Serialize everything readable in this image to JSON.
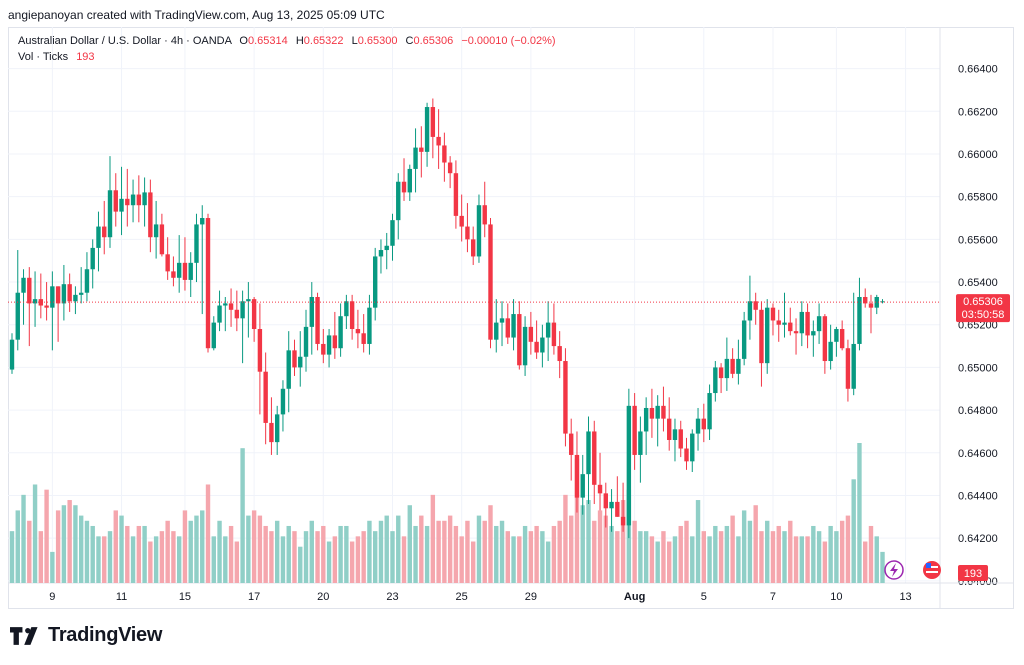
{
  "header": {
    "credit": "angiepanoyan created with TradingView.com, Aug 13, 2025 05:09 UTC"
  },
  "legend": {
    "symbol": "Australian Dollar / U.S. Dollar · 4h · OANDA",
    "open_label": "O",
    "open": "0.65314",
    "high_label": "H",
    "high": "0.65322",
    "low_label": "L",
    "low": "0.65300",
    "close_label": "C",
    "close": "0.65306",
    "change": "−0.00010 (−0.02%)",
    "vol_label": "Vol · Ticks",
    "vol": "193"
  },
  "footer": {
    "brand": "TradingView"
  },
  "colors": {
    "up": "#089981",
    "down": "#f23645",
    "vol_up": "#90cfc7",
    "vol_down": "#f5a6ad"
  },
  "chart_data": {
    "type": "candlestick",
    "title": "Australian Dollar / U.S. Dollar · 4h · OANDA",
    "y_ticks": [
      "0.64000",
      "0.64200",
      "0.64400",
      "0.64600",
      "0.64800",
      "0.65000",
      "0.65200",
      "0.65400",
      "0.65600",
      "0.65800",
      "0.66000",
      "0.66200",
      "0.66400"
    ],
    "ylim": [
      0.6399,
      0.6652
    ],
    "x_ticks": [
      {
        "label": "9",
        "i": 7
      },
      {
        "label": "11",
        "i": 19
      },
      {
        "label": "15",
        "i": 30
      },
      {
        "label": "17",
        "i": 42
      },
      {
        "label": "20",
        "i": 54
      },
      {
        "label": "23",
        "i": 66
      },
      {
        "label": "25",
        "i": 78
      },
      {
        "label": "29",
        "i": 90
      },
      {
        "label": "Aug",
        "i": 108
      },
      {
        "label": "5",
        "i": 120
      },
      {
        "label": "7",
        "i": 132
      },
      {
        "label": "10",
        "i": 143
      },
      {
        "label": "13",
        "i": 155
      }
    ],
    "last_price": "0.65306",
    "countdown": "03:50:58",
    "last_volume": "193",
    "candles": [
      [
        0.6499,
        0.6516,
        0.6497,
        0.6513,
        10
      ],
      [
        0.6513,
        0.6555,
        0.6508,
        0.6535,
        14
      ],
      [
        0.6535,
        0.6546,
        0.652,
        0.6542,
        17
      ],
      [
        0.6542,
        0.6547,
        0.651,
        0.653,
        12
      ],
      [
        0.653,
        0.6545,
        0.6519,
        0.6532,
        19
      ],
      [
        0.6532,
        0.6544,
        0.6523,
        0.6529,
        10
      ],
      [
        0.6529,
        0.654,
        0.6522,
        0.6528,
        18
      ],
      [
        0.6528,
        0.6545,
        0.6508,
        0.6538,
        6
      ],
      [
        0.6538,
        0.6538,
        0.6512,
        0.653,
        14
      ],
      [
        0.653,
        0.6548,
        0.6522,
        0.6539,
        15
      ],
      [
        0.6539,
        0.6544,
        0.6526,
        0.6531,
        16
      ],
      [
        0.6531,
        0.6538,
        0.6525,
        0.6534,
        15
      ],
      [
        0.6534,
        0.6547,
        0.653,
        0.6535,
        13
      ],
      [
        0.6535,
        0.6554,
        0.6531,
        0.6546,
        12
      ],
      [
        0.6546,
        0.656,
        0.6537,
        0.6556,
        11
      ],
      [
        0.6556,
        0.6573,
        0.6545,
        0.6566,
        9
      ],
      [
        0.6566,
        0.6578,
        0.6553,
        0.6561,
        9
      ],
      [
        0.6561,
        0.6599,
        0.6556,
        0.6583,
        10
      ],
      [
        0.6583,
        0.6591,
        0.6566,
        0.6573,
        14
      ],
      [
        0.6573,
        0.6594,
        0.6562,
        0.6579,
        13
      ],
      [
        0.6579,
        0.6593,
        0.6566,
        0.6576,
        11
      ],
      [
        0.6576,
        0.6588,
        0.6568,
        0.6581,
        9
      ],
      [
        0.6581,
        0.659,
        0.6568,
        0.6576,
        11
      ],
      [
        0.6576,
        0.6589,
        0.6566,
        0.6582,
        11
      ],
      [
        0.6582,
        0.6588,
        0.6554,
        0.6561,
        8
      ],
      [
        0.6561,
        0.6578,
        0.6551,
        0.6567,
        9
      ],
      [
        0.6567,
        0.6572,
        0.6552,
        0.6553,
        10
      ],
      [
        0.6553,
        0.6561,
        0.6541,
        0.6545,
        12
      ],
      [
        0.6545,
        0.6552,
        0.6538,
        0.6542,
        10
      ],
      [
        0.6542,
        0.6562,
        0.6535,
        0.6549,
        9
      ],
      [
        0.6549,
        0.6561,
        0.6536,
        0.6541,
        14
      ],
      [
        0.6541,
        0.6554,
        0.6533,
        0.6549,
        12
      ],
      [
        0.6549,
        0.6572,
        0.654,
        0.6567,
        13
      ],
      [
        0.6567,
        0.6576,
        0.6525,
        0.657,
        14
      ],
      [
        0.657,
        0.6572,
        0.6507,
        0.6509,
        19
      ],
      [
        0.6509,
        0.6524,
        0.6508,
        0.6521,
        9
      ],
      [
        0.6521,
        0.6536,
        0.6517,
        0.6529,
        12
      ],
      [
        0.6529,
        0.6533,
        0.6517,
        0.653,
        9
      ],
      [
        0.653,
        0.6537,
        0.6519,
        0.6527,
        11
      ],
      [
        0.6527,
        0.6536,
        0.6517,
        0.6523,
        8
      ],
      [
        0.6523,
        0.6536,
        0.6502,
        0.6531,
        26
      ],
      [
        0.6531,
        0.654,
        0.6514,
        0.6532,
        13
      ],
      [
        0.6532,
        0.6533,
        0.6512,
        0.6518,
        14
      ],
      [
        0.6518,
        0.653,
        0.6478,
        0.6498,
        13
      ],
      [
        0.6498,
        0.6507,
        0.6464,
        0.6474,
        11
      ],
      [
        0.6474,
        0.6486,
        0.6459,
        0.6465,
        10
      ],
      [
        0.6465,
        0.6482,
        0.6459,
        0.6478,
        12
      ],
      [
        0.6478,
        0.6494,
        0.647,
        0.649,
        9
      ],
      [
        0.649,
        0.6517,
        0.6479,
        0.6508,
        11
      ],
      [
        0.6508,
        0.6513,
        0.6496,
        0.65,
        10
      ],
      [
        0.65,
        0.6517,
        0.6491,
        0.6505,
        7
      ],
      [
        0.6505,
        0.6527,
        0.6498,
        0.6519,
        10
      ],
      [
        0.6519,
        0.654,
        0.6506,
        0.6533,
        12
      ],
      [
        0.6533,
        0.6535,
        0.6508,
        0.6511,
        10
      ],
      [
        0.6511,
        0.6518,
        0.6502,
        0.6506,
        11
      ],
      [
        0.6506,
        0.6518,
        0.65,
        0.6515,
        8
      ],
      [
        0.6515,
        0.6526,
        0.6504,
        0.6509,
        9
      ],
      [
        0.6509,
        0.653,
        0.6505,
        0.6524,
        11
      ],
      [
        0.6524,
        0.6534,
        0.6518,
        0.6531,
        11
      ],
      [
        0.6531,
        0.6534,
        0.6513,
        0.6518,
        8
      ],
      [
        0.6518,
        0.6527,
        0.6509,
        0.6516,
        9
      ],
      [
        0.6516,
        0.6525,
        0.6507,
        0.6511,
        10
      ],
      [
        0.6511,
        0.6534,
        0.6506,
        0.6528,
        12
      ],
      [
        0.6528,
        0.6556,
        0.6522,
        0.6552,
        10
      ],
      [
        0.6552,
        0.656,
        0.6544,
        0.6555,
        12
      ],
      [
        0.6555,
        0.6563,
        0.6546,
        0.6557,
        13
      ],
      [
        0.6557,
        0.6572,
        0.655,
        0.6569,
        10
      ],
      [
        0.6569,
        0.6591,
        0.656,
        0.6587,
        13
      ],
      [
        0.6587,
        0.6598,
        0.6578,
        0.6582,
        9
      ],
      [
        0.6582,
        0.6595,
        0.6578,
        0.6593,
        15
      ],
      [
        0.6593,
        0.6612,
        0.6582,
        0.6603,
        11
      ],
      [
        0.6603,
        0.6613,
        0.6589,
        0.6601,
        13
      ],
      [
        0.6601,
        0.6624,
        0.6594,
        0.6622,
        11
      ],
      [
        0.6622,
        0.6626,
        0.6598,
        0.6608,
        17
      ],
      [
        0.6608,
        0.6621,
        0.6593,
        0.6604,
        12
      ],
      [
        0.6604,
        0.661,
        0.6587,
        0.6596,
        12
      ],
      [
        0.6596,
        0.6599,
        0.6584,
        0.6591,
        13
      ],
      [
        0.6591,
        0.6597,
        0.6565,
        0.6571,
        11
      ],
      [
        0.6571,
        0.6581,
        0.6559,
        0.6566,
        9
      ],
      [
        0.6566,
        0.6577,
        0.6554,
        0.656,
        12
      ],
      [
        0.656,
        0.6566,
        0.6548,
        0.6552,
        8
      ],
      [
        0.6552,
        0.6581,
        0.6549,
        0.6576,
        13
      ],
      [
        0.6576,
        0.6587,
        0.6561,
        0.6567,
        12
      ],
      [
        0.6567,
        0.657,
        0.6509,
        0.6513,
        15
      ],
      [
        0.6513,
        0.6532,
        0.6507,
        0.6521,
        11
      ],
      [
        0.6521,
        0.6531,
        0.651,
        0.6523,
        12
      ],
      [
        0.6523,
        0.653,
        0.6511,
        0.6514,
        10
      ],
      [
        0.6514,
        0.6532,
        0.6508,
        0.6525,
        9
      ],
      [
        0.6525,
        0.6531,
        0.6499,
        0.6501,
        9
      ],
      [
        0.6501,
        0.6524,
        0.6496,
        0.6519,
        11
      ],
      [
        0.6519,
        0.6526,
        0.6506,
        0.6512,
        10
      ],
      [
        0.6512,
        0.6522,
        0.6504,
        0.6507,
        11
      ],
      [
        0.6507,
        0.652,
        0.65,
        0.6514,
        10
      ],
      [
        0.6514,
        0.6531,
        0.6503,
        0.6521,
        8
      ],
      [
        0.6521,
        0.653,
        0.6506,
        0.651,
        11
      ],
      [
        0.651,
        0.6517,
        0.6495,
        0.6503,
        12
      ],
      [
        0.6503,
        0.6509,
        0.6463,
        0.6469,
        17
      ],
      [
        0.6469,
        0.6476,
        0.6447,
        0.6459,
        13
      ],
      [
        0.6459,
        0.647,
        0.6432,
        0.6439,
        24
      ],
      [
        0.6439,
        0.6459,
        0.6431,
        0.645,
        15
      ],
      [
        0.645,
        0.6477,
        0.6436,
        0.647,
        16
      ],
      [
        0.647,
        0.6475,
        0.6436,
        0.6445,
        12
      ],
      [
        0.6445,
        0.646,
        0.6433,
        0.6441,
        14
      ],
      [
        0.6441,
        0.6446,
        0.6425,
        0.6434,
        13
      ],
      [
        0.6434,
        0.6443,
        0.6423,
        0.6437,
        11
      ],
      [
        0.6437,
        0.6449,
        0.643,
        0.643,
        10
      ],
      [
        0.643,
        0.6446,
        0.6423,
        0.6426,
        16
      ],
      [
        0.6426,
        0.649,
        0.642,
        0.6482,
        18
      ],
      [
        0.6482,
        0.6488,
        0.6452,
        0.6459,
        12
      ],
      [
        0.6459,
        0.6477,
        0.6446,
        0.647,
        10
      ],
      [
        0.647,
        0.6486,
        0.6459,
        0.6481,
        10
      ],
      [
        0.6481,
        0.649,
        0.6467,
        0.6476,
        9
      ],
      [
        0.6476,
        0.6487,
        0.6463,
        0.6482,
        8
      ],
      [
        0.6482,
        0.6491,
        0.647,
        0.6476,
        10
      ],
      [
        0.6476,
        0.6486,
        0.6461,
        0.6466,
        8
      ],
      [
        0.6466,
        0.6476,
        0.6456,
        0.6471,
        9
      ],
      [
        0.6471,
        0.6475,
        0.6458,
        0.6462,
        11
      ],
      [
        0.6462,
        0.6467,
        0.6452,
        0.6456,
        12
      ],
      [
        0.6456,
        0.6471,
        0.6451,
        0.6469,
        9
      ],
      [
        0.6469,
        0.6481,
        0.6461,
        0.6476,
        16
      ],
      [
        0.6476,
        0.6483,
        0.6465,
        0.6471,
        10
      ],
      [
        0.6471,
        0.6492,
        0.6466,
        0.6488,
        9
      ],
      [
        0.6488,
        0.6503,
        0.6484,
        0.65,
        11
      ],
      [
        0.65,
        0.6502,
        0.6488,
        0.6495,
        10
      ],
      [
        0.6495,
        0.6514,
        0.6489,
        0.6504,
        11
      ],
      [
        0.6504,
        0.6509,
        0.6495,
        0.6497,
        13
      ],
      [
        0.6497,
        0.6513,
        0.6492,
        0.6504,
        9
      ],
      [
        0.6504,
        0.6526,
        0.6501,
        0.6522,
        14
      ],
      [
        0.6522,
        0.6543,
        0.6513,
        0.6531,
        12
      ],
      [
        0.6531,
        0.6535,
        0.652,
        0.6527,
        15
      ],
      [
        0.6527,
        0.6531,
        0.6491,
        0.6502,
        10
      ],
      [
        0.6502,
        0.6532,
        0.6497,
        0.6528,
        12
      ],
      [
        0.6528,
        0.653,
        0.6515,
        0.6522,
        10
      ],
      [
        0.6522,
        0.6527,
        0.6512,
        0.652,
        11
      ],
      [
        0.652,
        0.6535,
        0.6514,
        0.6521,
        10
      ],
      [
        0.6521,
        0.6528,
        0.6515,
        0.6517,
        12
      ],
      [
        0.6517,
        0.6523,
        0.6506,
        0.6516,
        9
      ],
      [
        0.6516,
        0.6531,
        0.651,
        0.6526,
        9
      ],
      [
        0.6526,
        0.653,
        0.6509,
        0.6515,
        9
      ],
      [
        0.6515,
        0.6522,
        0.6505,
        0.6517,
        11
      ],
      [
        0.6517,
        0.653,
        0.6511,
        0.6524,
        10
      ],
      [
        0.6524,
        0.6525,
        0.6497,
        0.6503,
        8
      ],
      [
        0.6503,
        0.652,
        0.6499,
        0.6512,
        11
      ],
      [
        0.6512,
        0.6519,
        0.6505,
        0.6518,
        10
      ],
      [
        0.6518,
        0.6522,
        0.6508,
        0.6509,
        12
      ],
      [
        0.6509,
        0.6513,
        0.6484,
        0.649,
        13
      ],
      [
        0.649,
        0.6535,
        0.6487,
        0.6511,
        20
      ],
      [
        0.6511,
        0.6542,
        0.6508,
        0.6533,
        27
      ],
      [
        0.6533,
        0.6537,
        0.6528,
        0.653,
        8
      ],
      [
        0.653,
        0.6534,
        0.6516,
        0.6528,
        11
      ],
      [
        0.6528,
        0.6534,
        0.6525,
        0.6533,
        9
      ],
      [
        0.6531,
        0.6532,
        0.653,
        0.6531,
        6
      ]
    ]
  }
}
